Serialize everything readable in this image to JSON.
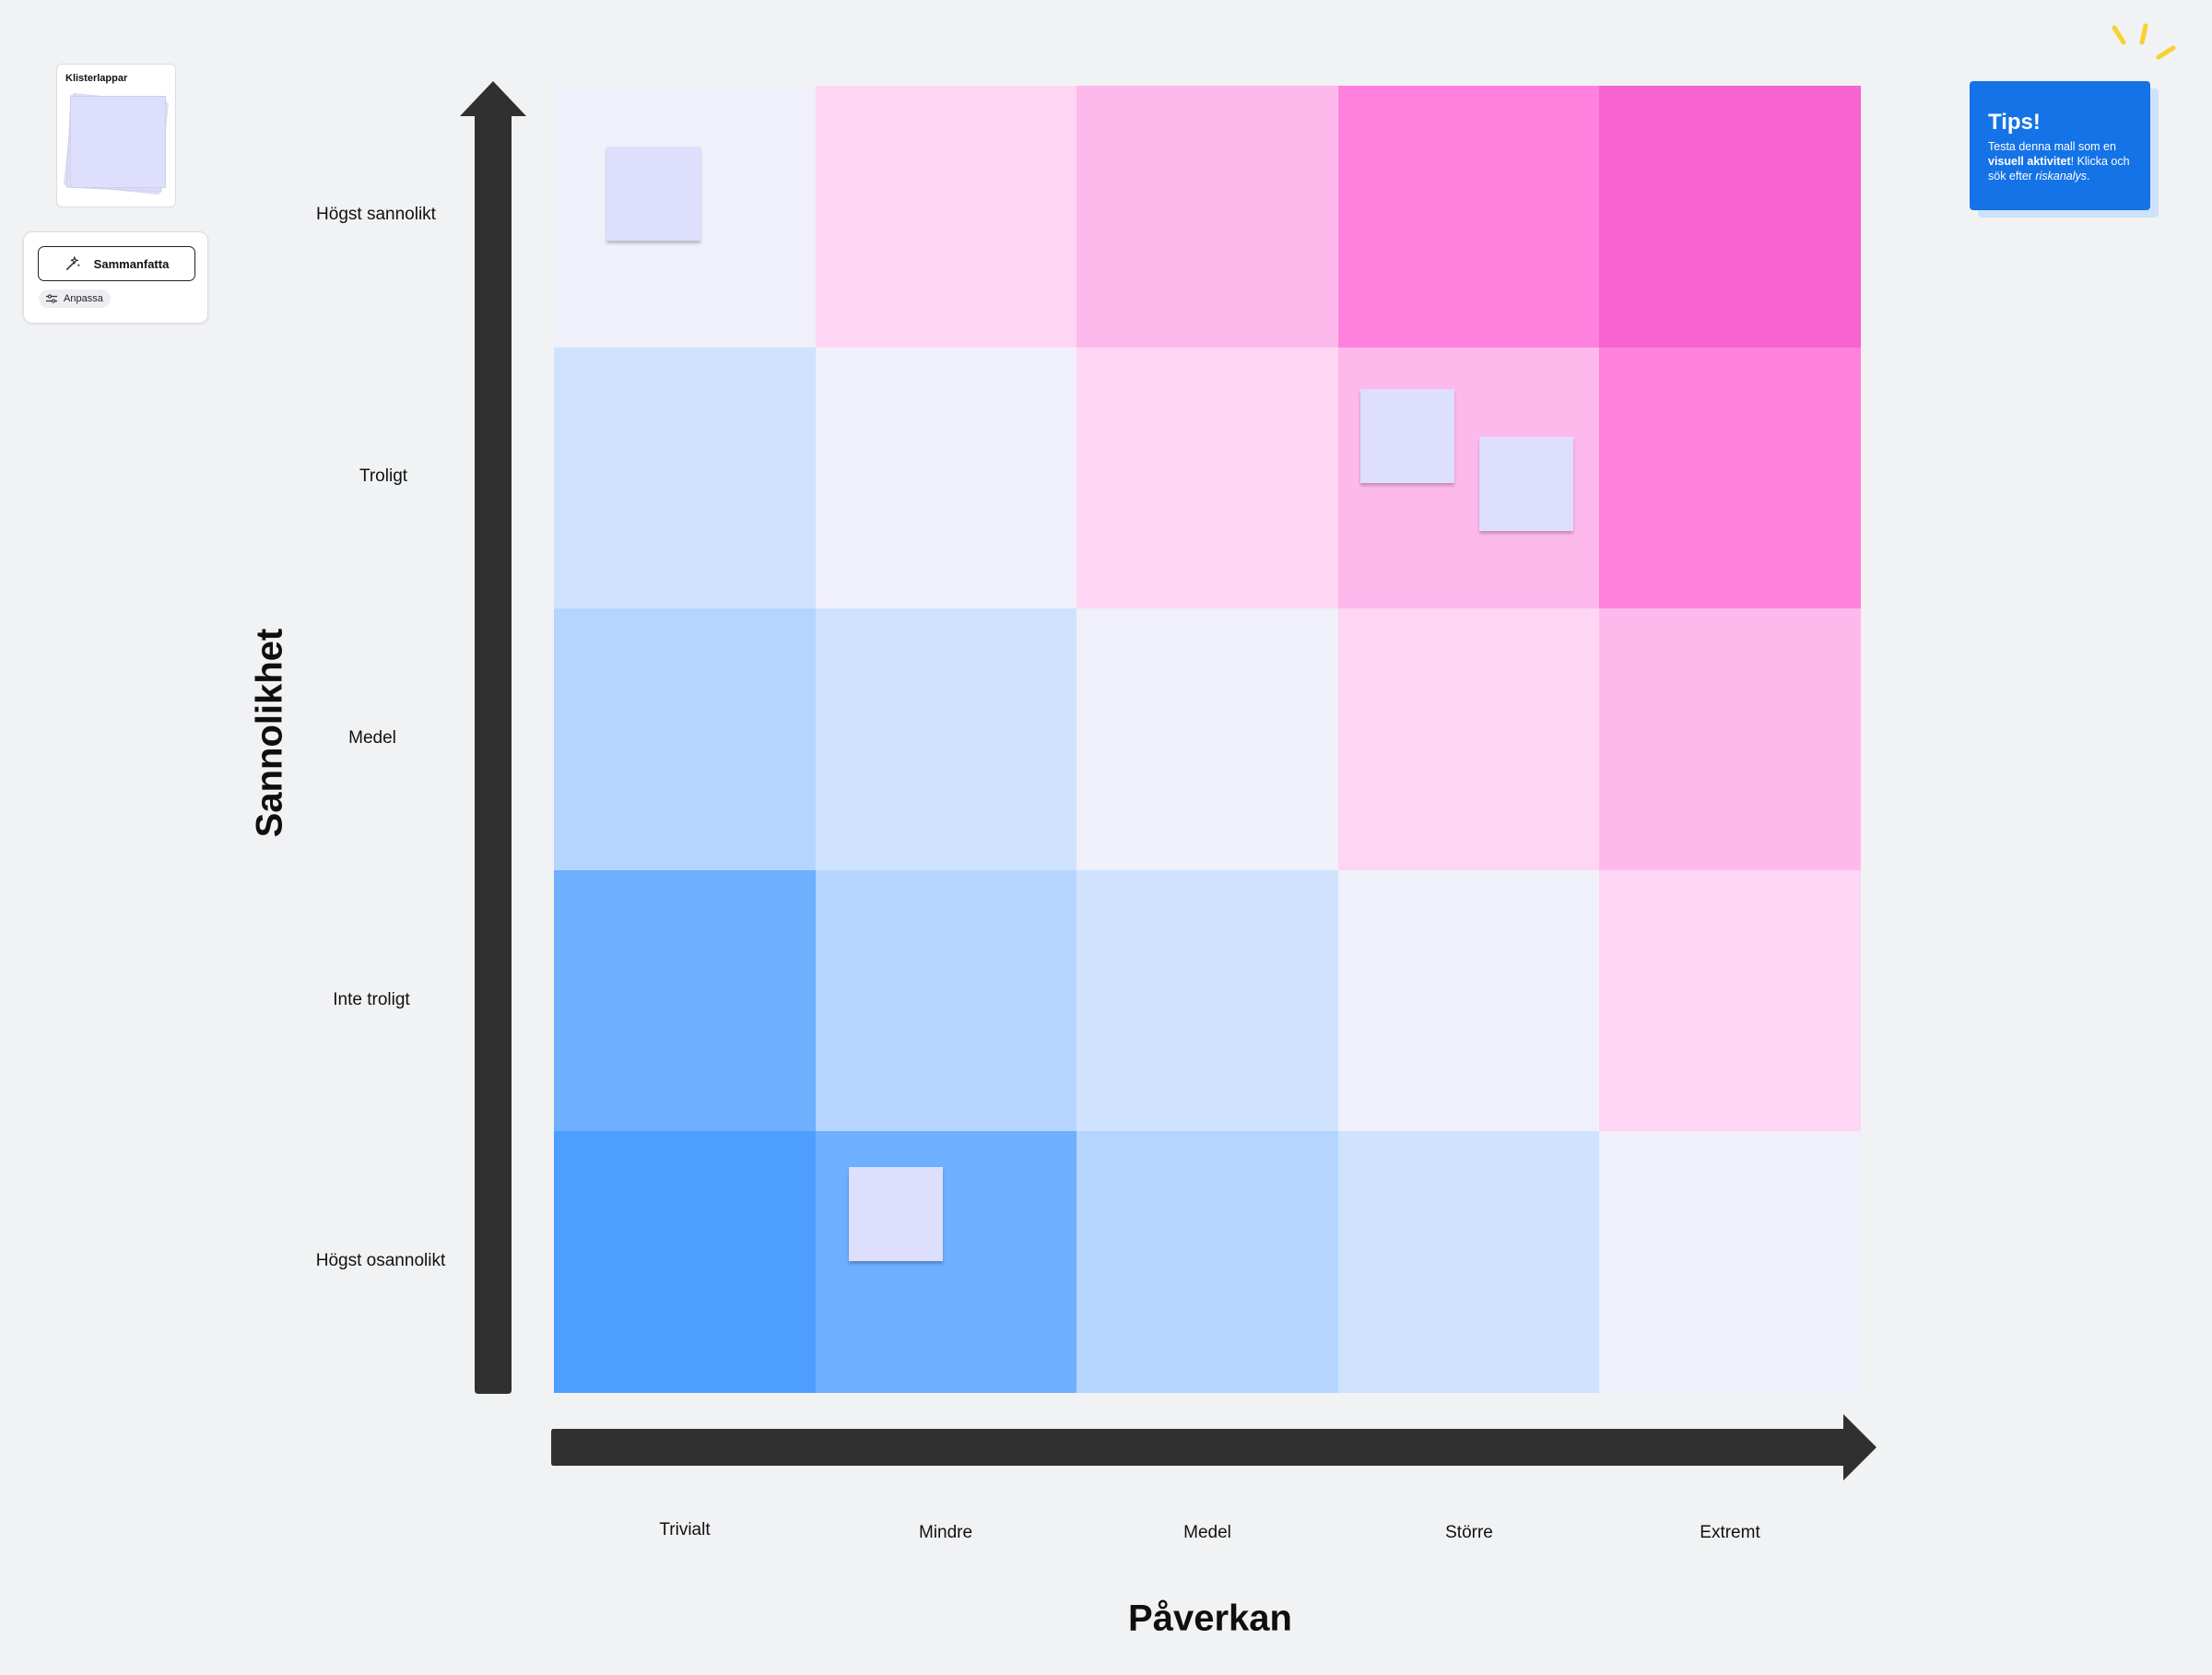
{
  "sidebar": {
    "sticky_notes_title": "Klisterlappar",
    "summarize_label": "Sammanfatta",
    "customize_label": "Anpassa"
  },
  "matrix": {
    "y_axis_title": "Sannolikhet",
    "x_axis_title": "Påverkan",
    "rows": [
      "Högst sannolikt",
      "Troligt",
      "Medel",
      "Inte troligt",
      "Högst osannolikt"
    ],
    "columns": [
      "Trivialt",
      "Mindre",
      "Medel",
      "Större",
      "Extremt"
    ],
    "cell_colors": [
      [
        "#f0f0fa",
        "#fed5f3",
        "#feb9ec",
        "#ff80dd",
        "#f763d1"
      ],
      [
        "#cfe3fe",
        "#f0f0fa",
        "#fed5f3",
        "#feb9ec",
        "#ff80dd"
      ],
      [
        "#b5d5fe",
        "#cfe3fe",
        "#f0f0fa",
        "#fed5f3",
        "#feb9ec"
      ],
      [
        "#6eaffe",
        "#b5d5fe",
        "#cfe3fe",
        "#f0f0fa",
        "#fed5f3"
      ],
      [
        "#4d9eff",
        "#6eaffe",
        "#b5d5fe",
        "#cfe3fe",
        "#f0f0fa"
      ]
    ],
    "sticky_note_color": "#dedefd",
    "axis_color": "#303030"
  },
  "tips": {
    "title": "Tips!",
    "text_1": "Testa denna mall som en ",
    "text_bold": "visuell aktivitet",
    "text_2": "! Klicka och sök efter ",
    "text_italic": "riskanalys",
    "text_3": ".",
    "background": "#1473e6"
  }
}
